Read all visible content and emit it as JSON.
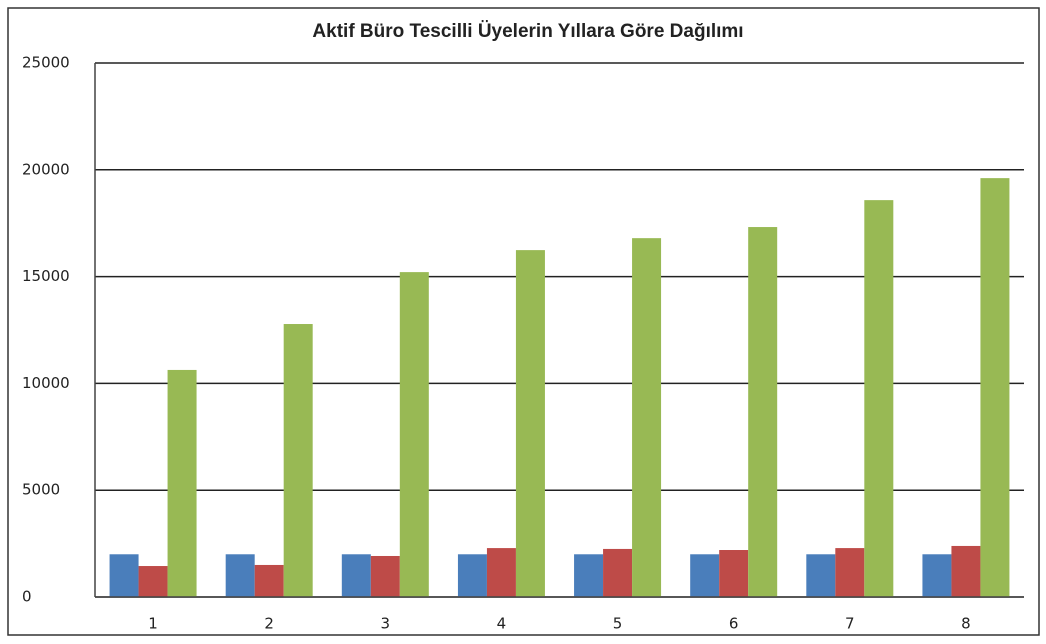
{
  "chart_data": {
    "type": "bar",
    "title": "Aktif Büro Tescilli Üyelerin Yıllara Göre Dağılımı",
    "categories": [
      "1",
      "2",
      "3",
      "4",
      "5",
      "6",
      "7",
      "8"
    ],
    "series": [
      {
        "color": "#4a7ebb",
        "values": [
          2000,
          2000,
          2000,
          2000,
          2000,
          2000,
          2000,
          2000
        ]
      },
      {
        "color": "#be4b48",
        "values": [
          1450,
          1500,
          1920,
          2290,
          2250,
          2200,
          2290,
          2390
        ]
      },
      {
        "color": "#98b954",
        "values": [
          10630,
          12780,
          15210,
          16240,
          16800,
          17320,
          18580,
          19610
        ]
      }
    ],
    "ylim": [
      0,
      25000
    ],
    "yticks": [
      0,
      5000,
      10000,
      15000,
      20000,
      25000
    ],
    "grid": true
  }
}
